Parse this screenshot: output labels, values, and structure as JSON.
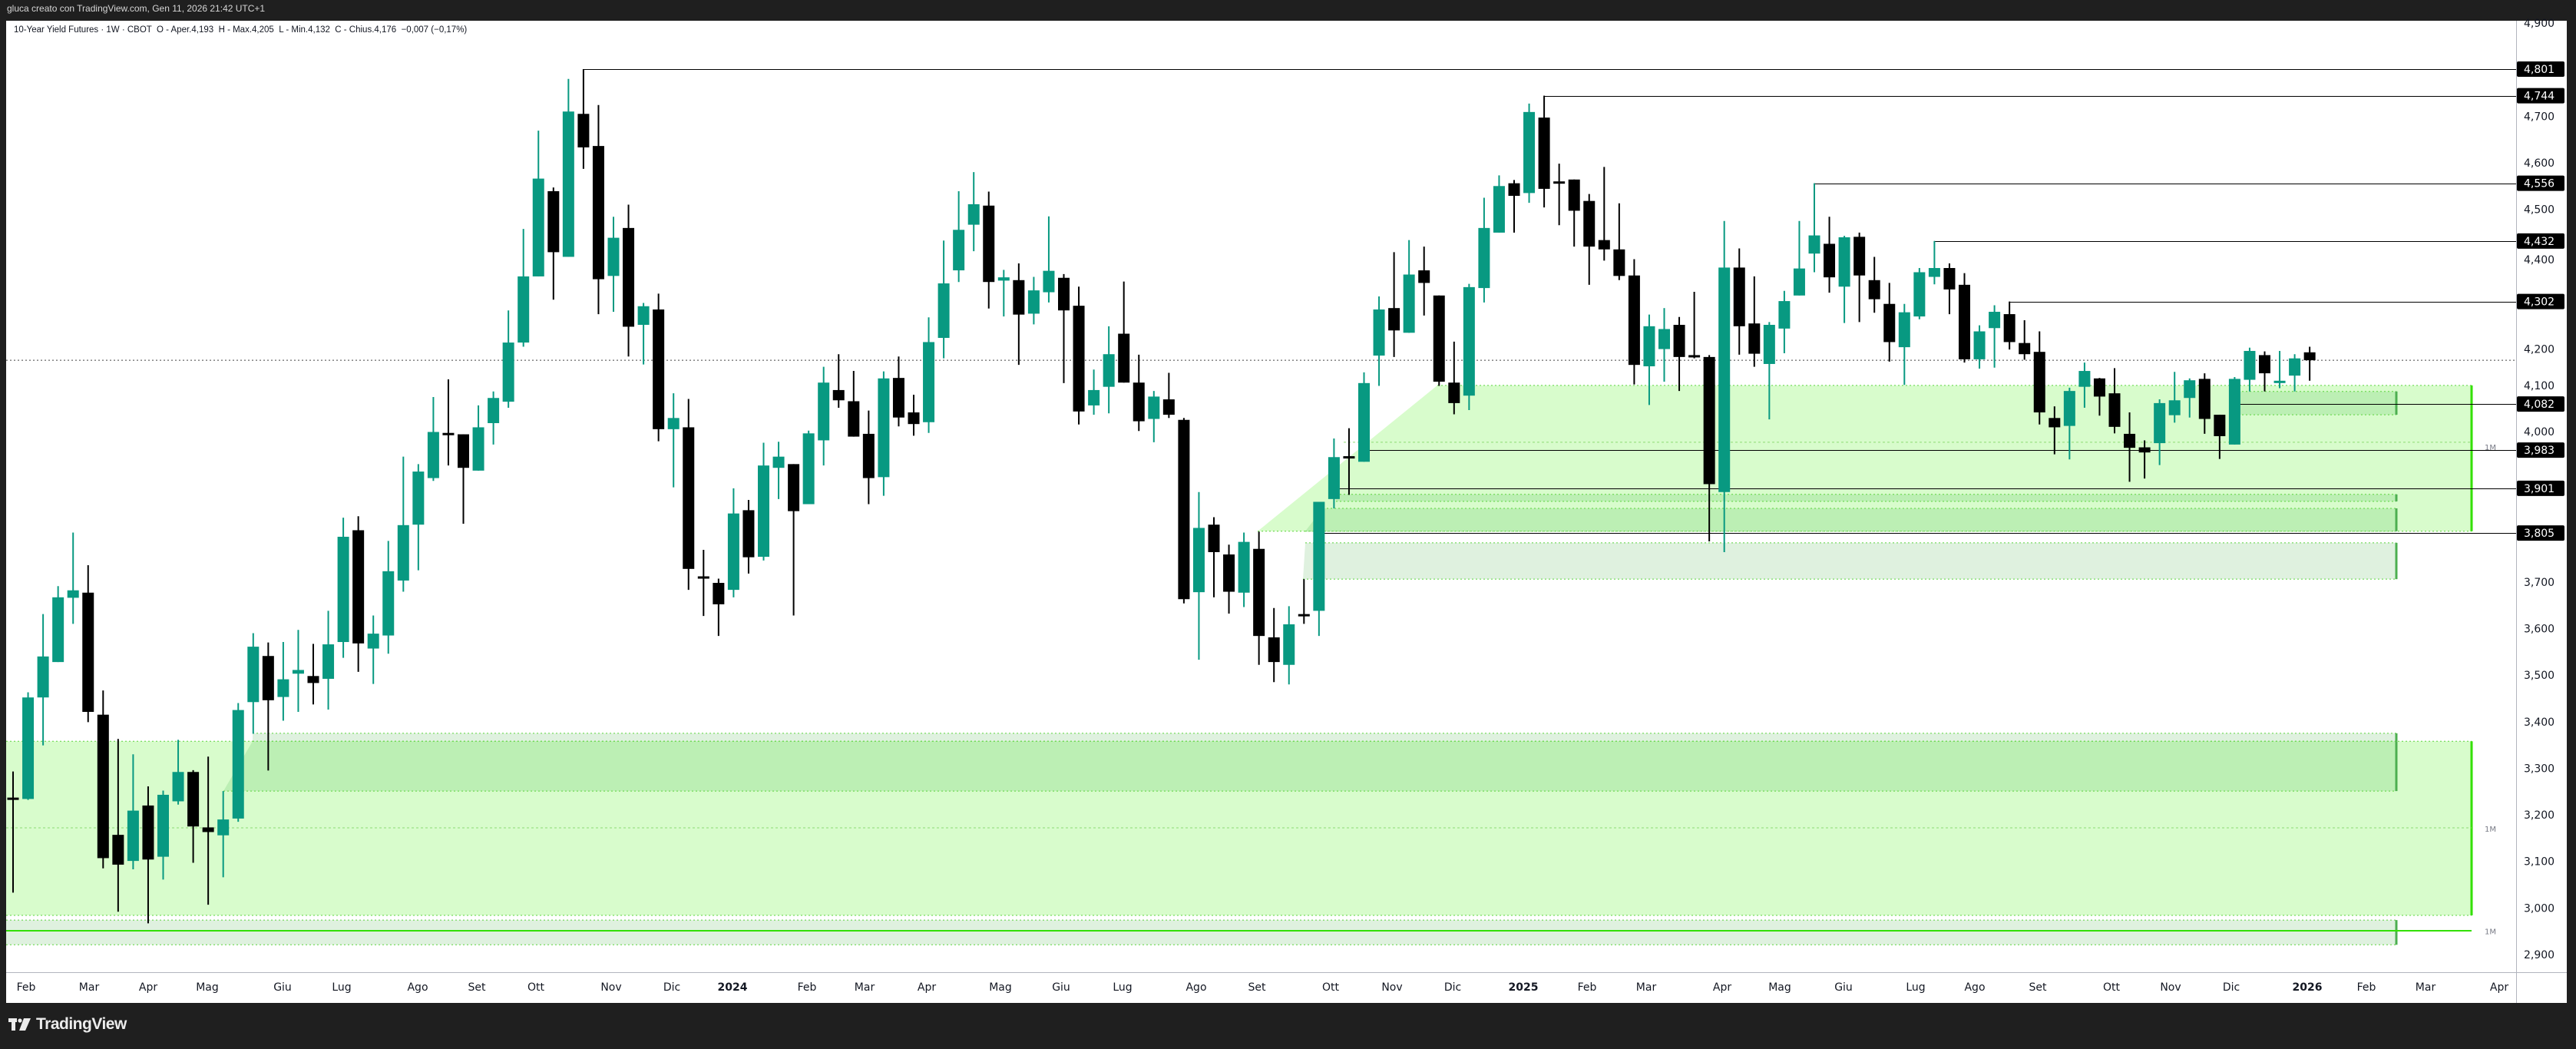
{
  "header": {
    "attribution": "gluca creato con TradingView.com, Gen 11, 2026 21:42 UTC+1"
  },
  "legend": {
    "symbol": "10-Year Yield Futures · 1W · CBOT",
    "open": "O - Aper.4,193",
    "high": "H - Max.4,205",
    "low": "L - Min.4,132",
    "close": "C - Chius.4,176",
    "change": "−0,007 (−0,17%)"
  },
  "footer": {
    "brand": "TradingView"
  },
  "colors": {
    "up": "#089981",
    "down": "#000000",
    "zone_light": "#d8fccc",
    "zone_mid": "#b9edb1",
    "zone_gray": "#dcefdc",
    "zone_edge_bright": "#33e000",
    "zone_edge_dark": "#4caf50"
  },
  "chart_data": {
    "type": "candlestick",
    "interval": "1W",
    "ylim": [
      2880,
      4920
    ],
    "y_ticks": [
      "4,900",
      "4,700",
      "4,600",
      "4,500",
      "4,400",
      "4,200",
      "4,100",
      "4,000",
      "3,700",
      "3,600",
      "3,500",
      "3,400",
      "3,300",
      "3,200",
      "3,100",
      "3,000",
      "2,900"
    ],
    "y_tick_values": [
      4900,
      4700,
      4600,
      4500,
      4400,
      4200,
      4100,
      4000,
      3700,
      3600,
      3500,
      3400,
      3300,
      3200,
      3100,
      3000,
      2900
    ],
    "x_ticks": [
      "Feb",
      "Mar",
      "Apr",
      "Mag",
      "Giu",
      "Lug",
      "Ago",
      "Set",
      "Ott",
      "Nov",
      "Dic",
      "2024",
      "Feb",
      "Mar",
      "Apr",
      "Mag",
      "Giu",
      "Lug",
      "Ago",
      "Set",
      "Ott",
      "Nov",
      "Dic",
      "2025",
      "Feb",
      "Mar",
      "Apr",
      "Mag",
      "Giu",
      "Lug",
      "Ago",
      "Set",
      "Ott",
      "Nov",
      "Dic",
      "2026",
      "Feb",
      "Mar",
      "Apr"
    ],
    "x_ticks_bold": [
      "2024",
      "2025",
      "2026"
    ],
    "last_price": 4176,
    "levels": [
      {
        "value": 4801,
        "label": "4,801"
      },
      {
        "value": 4744,
        "label": "4,744"
      },
      {
        "value": 4556,
        "label": "4,556"
      },
      {
        "value": 4432,
        "label": "4,432"
      },
      {
        "value": 4302,
        "label": "4,302"
      },
      {
        "value": 4082,
        "label": "4,082"
      },
      {
        "value": 3983,
        "label": "3,983"
      },
      {
        "value": 3901,
        "label": "3,901"
      },
      {
        "value": 3805,
        "label": "3,805"
      }
    ],
    "zones": [
      {
        "top": 4122,
        "bottom": 3809,
        "style": "light",
        "timeframe": "1M"
      },
      {
        "top": 4109,
        "bottom": 4059,
        "style": "mid"
      },
      {
        "top": 3888,
        "bottom": 3873,
        "style": "mid"
      },
      {
        "top": 3858,
        "bottom": 3809,
        "style": "mid"
      },
      {
        "top": 3784,
        "bottom": 3706,
        "style": "gray"
      },
      {
        "top": 3358,
        "bottom": 2984,
        "style": "light",
        "timeframe": "1M"
      },
      {
        "top": 3375,
        "bottom": 3358,
        "style": "gray"
      },
      {
        "top": 3358,
        "bottom": 3251,
        "style": "mid"
      },
      {
        "top": 2974,
        "bottom": 2921,
        "style": "gray",
        "timeframe": "1M"
      }
    ],
    "zone_labels": [
      "1M",
      "1M",
      "1M"
    ],
    "candles": [
      [
        3237,
        3293,
        3033,
        3232
      ],
      [
        3234,
        3463,
        3232,
        3452
      ],
      [
        3452,
        3631,
        3349,
        3540
      ],
      [
        3528,
        3691,
        3528,
        3667
      ],
      [
        3666,
        3806,
        3610,
        3682
      ],
      [
        3677,
        3736,
        3399,
        3421
      ],
      [
        3415,
        3467,
        3085,
        3107
      ],
      [
        3157,
        3363,
        2992,
        3093
      ],
      [
        3101,
        3330,
        3083,
        3209
      ],
      [
        3220,
        3261,
        2967,
        3104
      ],
      [
        3110,
        3252,
        3061,
        3243
      ],
      [
        3229,
        3361,
        3222,
        3292
      ],
      [
        3292,
        3296,
        3097,
        3175
      ],
      [
        3173,
        3325,
        3007,
        3163
      ],
      [
        3156,
        3251,
        3066,
        3190
      ],
      [
        3192,
        3440,
        3185,
        3425
      ],
      [
        3442,
        3590,
        3374,
        3561
      ],
      [
        3541,
        3570,
        3295,
        3446
      ],
      [
        3453,
        3571,
        3402,
        3491
      ],
      [
        3503,
        3597,
        3421,
        3511
      ],
      [
        3498,
        3567,
        3437,
        3483
      ],
      [
        3492,
        3638,
        3426,
        3566
      ],
      [
        3571,
        3838,
        3537,
        3797
      ],
      [
        3811,
        3841,
        3507,
        3568
      ],
      [
        3557,
        3628,
        3481,
        3589
      ],
      [
        3585,
        3788,
        3546,
        3723
      ],
      [
        3703,
        3969,
        3679,
        3822
      ],
      [
        3823,
        3953,
        3725,
        3937
      ],
      [
        3923,
        4097,
        3917,
        4022
      ],
      [
        4020,
        4135,
        3950,
        4015
      ],
      [
        4017,
        4017,
        3825,
        3945
      ],
      [
        3939,
        4079,
        3939,
        4032
      ],
      [
        4041,
        4109,
        3995,
        4095
      ],
      [
        4087,
        4283,
        4074,
        4214
      ],
      [
        4214,
        4458,
        4205,
        4356
      ],
      [
        4356,
        4669,
        4356,
        4566
      ],
      [
        4539,
        4547,
        4306,
        4408
      ],
      [
        4398,
        4780,
        4398,
        4710
      ],
      [
        4705,
        4801,
        4587,
        4633
      ],
      [
        4636,
        4724,
        4275,
        4350
      ],
      [
        4357,
        4484,
        4280,
        4439
      ],
      [
        4460,
        4510,
        4184,
        4248
      ],
      [
        4252,
        4299,
        4167,
        4292
      ],
      [
        4285,
        4319,
        4002,
        4028
      ],
      [
        4028,
        4105,
        3903,
        4052
      ],
      [
        4032,
        4093,
        3683,
        3728
      ],
      [
        3712,
        3769,
        3627,
        3711
      ],
      [
        3698,
        3707,
        3584,
        3652
      ],
      [
        3683,
        3901,
        3667,
        3847
      ],
      [
        3854,
        3876,
        3718,
        3753
      ],
      [
        3754,
        3999,
        3746,
        3950
      ],
      [
        3945,
        4001,
        3878,
        3969
      ],
      [
        3953,
        3953,
        3628,
        3852
      ],
      [
        3867,
        4025,
        3867,
        4019
      ],
      [
        4004,
        4162,
        3950,
        4128
      ],
      [
        4112,
        4189,
        4074,
        4090
      ],
      [
        4088,
        4153,
        4012,
        4012
      ],
      [
        4018,
        4068,
        3867,
        3923
      ],
      [
        3925,
        4152,
        3885,
        4137
      ],
      [
        4138,
        4184,
        4034,
        4053
      ],
      [
        4064,
        4102,
        4014,
        4039
      ],
      [
        4043,
        4268,
        4020,
        4215
      ],
      [
        4224,
        4433,
        4180,
        4341
      ],
      [
        4369,
        4539,
        4344,
        4456
      ],
      [
        4467,
        4580,
        4410,
        4511
      ],
      [
        4508,
        4538,
        4287,
        4344
      ],
      [
        4347,
        4370,
        4270,
        4354
      ],
      [
        4348,
        4384,
        4166,
        4274
      ],
      [
        4276,
        4355,
        4253,
        4326
      ],
      [
        4322,
        4485,
        4300,
        4368
      ],
      [
        4353,
        4361,
        4127,
        4283
      ],
      [
        4293,
        4334,
        4038,
        4066
      ],
      [
        4079,
        4156,
        4059,
        4112
      ],
      [
        4119,
        4249,
        4062,
        4189
      ],
      [
        4233,
        4345,
        4128,
        4128
      ],
      [
        4128,
        4188,
        4024,
        4045
      ],
      [
        4050,
        4110,
        4000,
        4098
      ],
      [
        4092,
        4149,
        4052,
        4059
      ],
      [
        4048,
        4052,
        3654,
        3663
      ],
      [
        3678,
        3893,
        3533,
        3816
      ],
      [
        3823,
        3839,
        3667,
        3764
      ],
      [
        3759,
        3780,
        3632,
        3679
      ],
      [
        3677,
        3806,
        3646,
        3786
      ],
      [
        3771,
        3808,
        3522,
        3584
      ],
      [
        3581,
        3644,
        3485,
        3528
      ],
      [
        3522,
        3648,
        3480,
        3609
      ],
      [
        3631,
        3706,
        3610,
        3629
      ],
      [
        3638,
        3872,
        3584,
        3872
      ],
      [
        3878,
        4008,
        3858,
        3968
      ],
      [
        3970,
        4030,
        3887,
        3968
      ],
      [
        3958,
        4150,
        3958,
        4127
      ],
      [
        4186,
        4313,
        4121,
        4285
      ],
      [
        4288,
        4408,
        4183,
        4240
      ],
      [
        4235,
        4434,
        4235,
        4360
      ],
      [
        4369,
        4420,
        4272,
        4342
      ],
      [
        4315,
        4315,
        4121,
        4130
      ],
      [
        4128,
        4216,
        4060,
        4084
      ],
      [
        4100,
        4340,
        4069,
        4333
      ],
      [
        4331,
        4525,
        4300,
        4460
      ],
      [
        4450,
        4573,
        4450,
        4550
      ],
      [
        4556,
        4563,
        4450,
        4529
      ],
      [
        4535,
        4727,
        4514,
        4709
      ],
      [
        4697,
        4744,
        4504,
        4544
      ],
      [
        4560,
        4598,
        4466,
        4558
      ],
      [
        4564,
        4564,
        4420,
        4497
      ],
      [
        4518,
        4533,
        4338,
        4420
      ],
      [
        4434,
        4591,
        4390,
        4414
      ],
      [
        4414,
        4513,
        4348,
        4357
      ],
      [
        4358,
        4393,
        4124,
        4166
      ],
      [
        4163,
        4274,
        4080,
        4249
      ],
      [
        4200,
        4288,
        4130,
        4243
      ],
      [
        4252,
        4269,
        4110,
        4183
      ],
      [
        4187,
        4323,
        4180,
        4183
      ],
      [
        4183,
        4187,
        3787,
        3910
      ],
      [
        3893,
        4475,
        3764,
        4375
      ],
      [
        4375,
        4416,
        4188,
        4249
      ],
      [
        4255,
        4356,
        4162,
        4190
      ],
      [
        4168,
        4258,
        4049,
        4252
      ],
      [
        4244,
        4325,
        4191,
        4303
      ],
      [
        4315,
        4475,
        4315,
        4373
      ],
      [
        4405,
        4556,
        4365,
        4444
      ],
      [
        4426,
        4484,
        4321,
        4354
      ],
      [
        4334,
        4443,
        4256,
        4440
      ],
      [
        4441,
        4450,
        4258,
        4358
      ],
      [
        4348,
        4398,
        4278,
        4307
      ],
      [
        4297,
        4342,
        4173,
        4215
      ],
      [
        4204,
        4297,
        4123,
        4279
      ],
      [
        4270,
        4374,
        4264,
        4365
      ],
      [
        4355,
        4432,
        4339,
        4374
      ],
      [
        4374,
        4384,
        4275,
        4328
      ],
      [
        4338,
        4363,
        4171,
        4178
      ],
      [
        4178,
        4251,
        4158,
        4238
      ],
      [
        4245,
        4294,
        4160,
        4280
      ],
      [
        4275,
        4302,
        4199,
        4215
      ],
      [
        4213,
        4262,
        4177,
        4189
      ],
      [
        4194,
        4238,
        4038,
        4064
      ],
      [
        4052,
        4077,
        3974,
        4032
      ],
      [
        4035,
        4117,
        3963,
        4110
      ],
      [
        4119,
        4171,
        4074,
        4153
      ],
      [
        4137,
        4138,
        4057,
        4098
      ],
      [
        4105,
        4159,
        4019,
        4033
      ],
      [
        4018,
        4064,
        3915,
        3988
      ],
      [
        3989,
        4004,
        3922,
        3978
      ],
      [
        3998,
        4092,
        3951,
        4084
      ],
      [
        4058,
        4151,
        4042,
        4090
      ],
      [
        4095,
        4137,
        4053,
        4133
      ],
      [
        4136,
        4148,
        4018,
        4050
      ],
      [
        4059,
        4059,
        3964,
        4013
      ],
      [
        3995,
        4140,
        3995,
        4136
      ],
      [
        4134,
        4203,
        4109,
        4196
      ],
      [
        4187,
        4195,
        4109,
        4148
      ],
      [
        4127,
        4196,
        4116,
        4132
      ],
      [
        4143,
        4189,
        4109,
        4180
      ],
      [
        4193,
        4205,
        4132,
        4176
      ]
    ]
  }
}
